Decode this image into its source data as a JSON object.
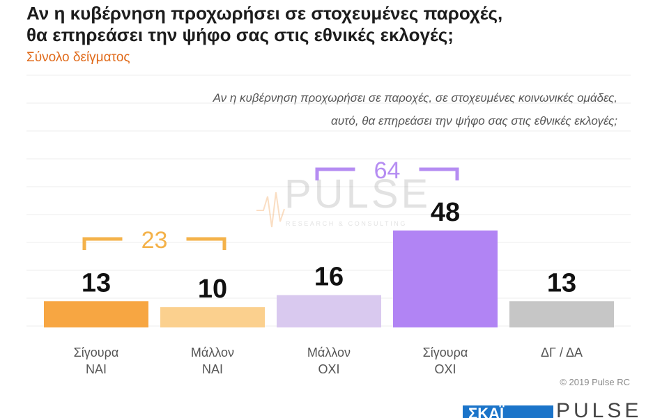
{
  "header": {
    "title_line1": "Αν η κυβέρνηση προχωρήσει σε στοχευμένες παροχές,",
    "title_line2": "θα επηρεάσει την ψήφο σας στις εθνικές εκλογές;",
    "subtitle": "Σύνολο δείγματος",
    "question_line1": "Αν η κυβέρνηση προχωρήσει σε παροχές, σε στοχευμένες κοινωνικές ομάδες,",
    "question_line2": "αυτό, θα επηρεάσει την ψήφο σας στις εθνικές εκλογές;"
  },
  "watermark": {
    "brand": "PULSE",
    "tagline": "RESEARCH & CONSULTING"
  },
  "chart_data": {
    "type": "bar",
    "categories": [
      [
        "Σίγουρα",
        "ΝΑΙ"
      ],
      [
        "Μάλλον",
        "ΝΑΙ"
      ],
      [
        "Μάλλον",
        "ΟΧΙ"
      ],
      [
        "Σίγουρα",
        "ΟΧΙ"
      ],
      [
        "ΔΓ / ΔΑ"
      ]
    ],
    "values": [
      13,
      10,
      16,
      48,
      13
    ],
    "colors": [
      "#f7a642",
      "#fbd08e",
      "#d9c9ef",
      "#b184f4",
      "#c6c6c6"
    ],
    "groups": [
      {
        "label": "23",
        "from": 0,
        "to": 1,
        "color": "#f4b24a"
      },
      {
        "label": "64",
        "from": 2,
        "to": 3,
        "color": "#b58cf2"
      }
    ],
    "ylim": [
      0,
      100
    ],
    "grid": true
  },
  "footer": {
    "copyright": "© 2019 Pulse RC",
    "logo_left": "ΣΚΑΪ",
    "logo_right": "PULSE"
  }
}
